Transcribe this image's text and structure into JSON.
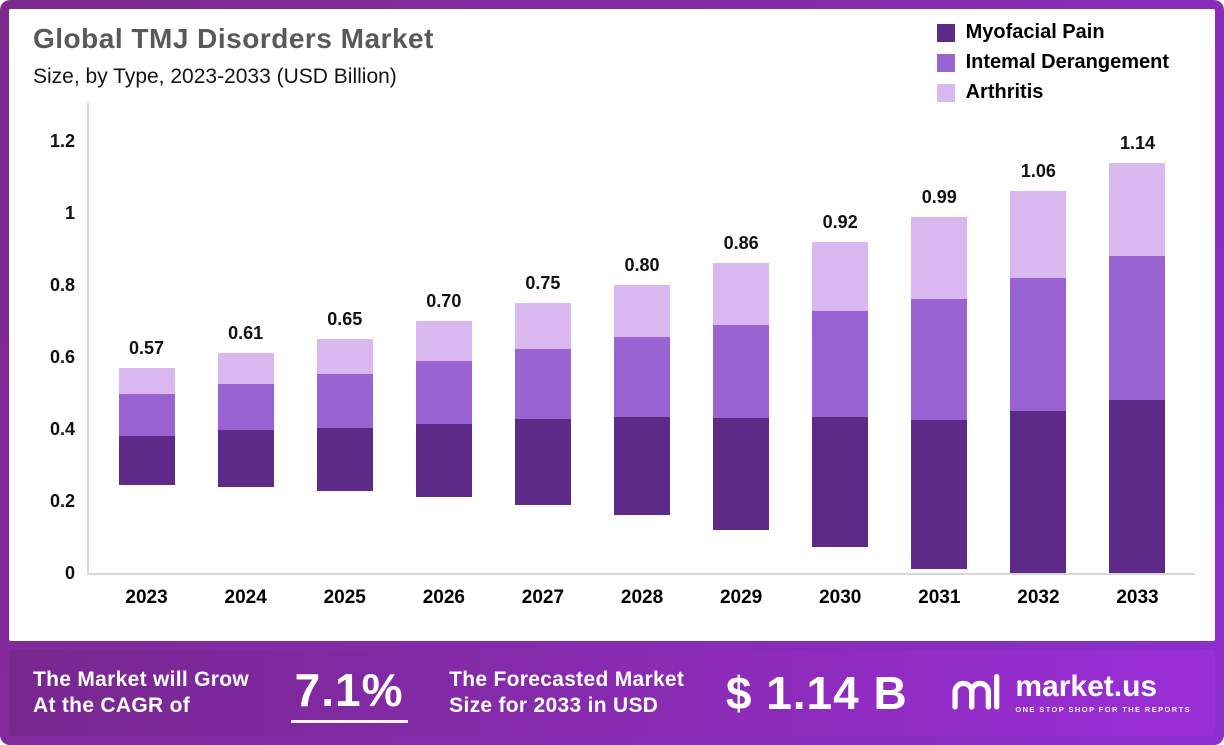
{
  "header": {
    "title": "Global TMJ Disorders Market",
    "subtitle": "Size, by Type, 2023-2033 (USD Billion)"
  },
  "legend": [
    {
      "label": "Myofacial Pain",
      "color": "#5e2a87"
    },
    {
      "label": "Intemal Derangement",
      "color": "#9a63d2"
    },
    {
      "label": "Arthritis",
      "color": "#d9b8f0"
    }
  ],
  "chart_data": {
    "type": "bar",
    "stacked": true,
    "title": "Global TMJ Disorders Market Size, by Type, 2023-2033 (USD Billion)",
    "xlabel": "",
    "ylabel": "",
    "ylim": [
      0,
      1.2
    ],
    "grid": false,
    "legend_position": "top-right",
    "categories": [
      "2023",
      "2024",
      "2025",
      "2026",
      "2027",
      "2028",
      "2029",
      "2030",
      "2031",
      "2032",
      "2033"
    ],
    "series": [
      {
        "name": "Myofacial Pain",
        "color": "#5e2a87",
        "values": [
          0.24,
          0.26,
          0.27,
          0.29,
          0.32,
          0.34,
          0.36,
          0.39,
          0.42,
          0.45,
          0.48
        ]
      },
      {
        "name": "Intemal Derangement",
        "color": "#9a63d2",
        "values": [
          0.2,
          0.21,
          0.23,
          0.25,
          0.26,
          0.28,
          0.3,
          0.32,
          0.34,
          0.37,
          0.4
        ]
      },
      {
        "name": "Arthritis",
        "color": "#d9b8f0",
        "values": [
          0.13,
          0.14,
          0.15,
          0.16,
          0.17,
          0.18,
          0.2,
          0.21,
          0.23,
          0.24,
          0.26
        ]
      }
    ],
    "totals": [
      0.57,
      0.61,
      0.65,
      0.7,
      0.75,
      0.8,
      0.86,
      0.92,
      0.99,
      1.06,
      1.14
    ],
    "total_labels": [
      "0.57",
      "0.61",
      "0.65",
      "0.70",
      "0.75",
      "0.80",
      "0.86",
      "0.92",
      "0.99",
      "1.06",
      "1.14"
    ],
    "y_ticks": [
      0,
      0.2,
      0.4,
      0.6,
      0.8,
      1,
      1.2
    ],
    "y_tick_labels": [
      "0",
      "0.2",
      "0.4",
      "0.6",
      "0.8",
      "1",
      "1.2"
    ]
  },
  "footer": {
    "cagr_text_line1": "The Market will Grow",
    "cagr_text_line2": "At the CAGR of",
    "cagr_value": "7.1%",
    "forecast_text_line1": "The Forecasted Market",
    "forecast_text_line2": "Size for 2033 in USD",
    "forecast_value": "$ 1.14 B",
    "brand": "market.us",
    "brand_tagline": "ONE STOP SHOP FOR THE REPORTS"
  }
}
